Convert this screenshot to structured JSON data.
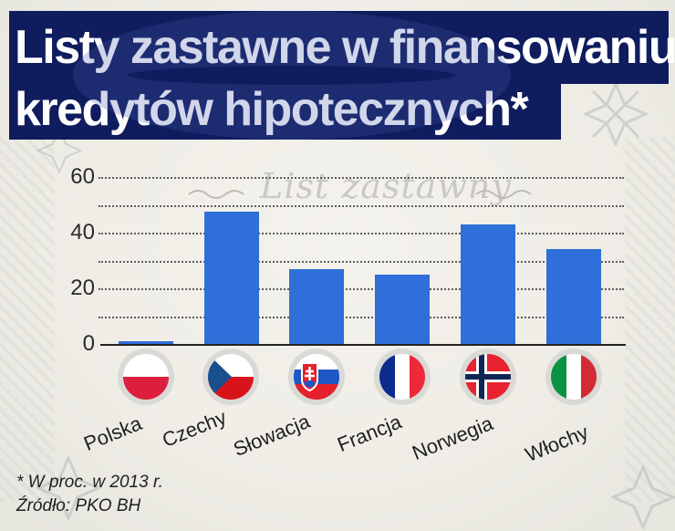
{
  "title": {
    "line1": "Listy zastawne w finansowaniu",
    "line2": "kredytów hipotecznych*"
  },
  "watermark": "List zastawny",
  "colors": {
    "title_bg": "#0f1d5e",
    "bar": "#2e6fd9",
    "background": "#efede6"
  },
  "footnotes": {
    "note": "* W proc. w 2013 r.",
    "source": "Źródło: PKO BH"
  },
  "countries": [
    {
      "name": "Polska",
      "flag": "poland-flag-icon"
    },
    {
      "name": "Czechy",
      "flag": "czech-flag-icon"
    },
    {
      "name": "Słowacja",
      "flag": "slovakia-flag-icon"
    },
    {
      "name": "Francja",
      "flag": "france-flag-icon"
    },
    {
      "name": "Norwegia",
      "flag": "norway-flag-icon"
    },
    {
      "name": "Włochy",
      "flag": "italy-flag-icon"
    }
  ],
  "chart_data": {
    "type": "bar",
    "title": "Listy zastawne w finansowaniu kredytów hipotecznych*",
    "subtitle": "",
    "categories": [
      "Polska",
      "Czechy",
      "Słowacja",
      "Francja",
      "Norwegia",
      "Włochy"
    ],
    "values": [
      1.3,
      47.6,
      27.1,
      25.1,
      43.0,
      34.2
    ],
    "xlabel": "",
    "ylabel": "",
    "y_ticks": [
      0,
      20,
      40,
      60
    ],
    "ylim": [
      0,
      60
    ],
    "grid": {
      "on": true,
      "style": "dotted",
      "step": 10
    },
    "legend": null,
    "annotations": [
      "* W proc. w 2013 r.",
      "Źródło: PKO BH"
    ],
    "unit": "%",
    "year": 2013
  }
}
